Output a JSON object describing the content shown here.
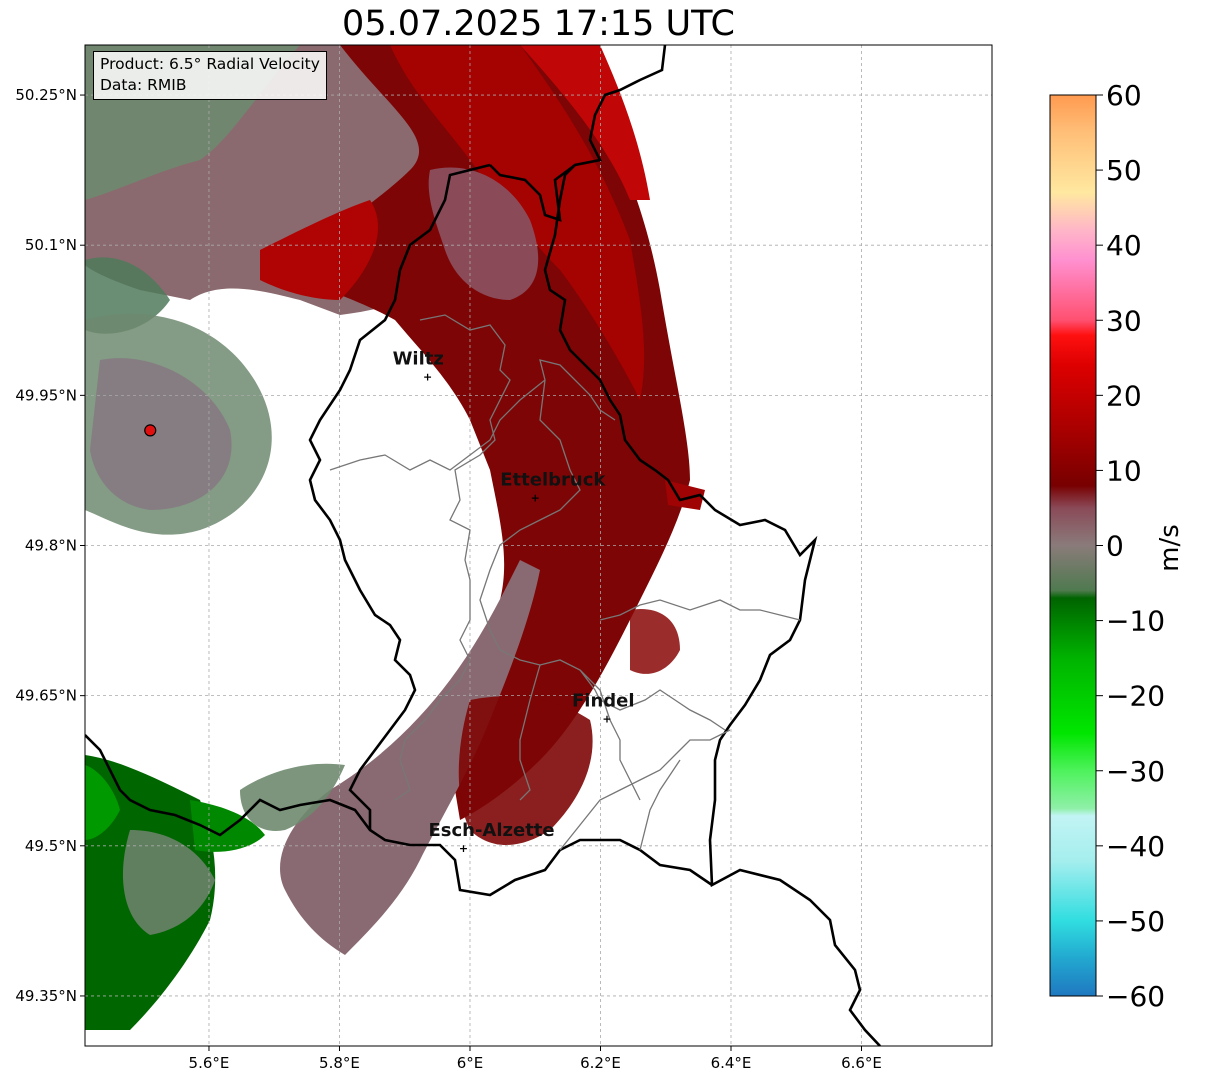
{
  "title": "05.07.2025 17:15 UTC",
  "info": {
    "product": "Product: 6.5° Radial Velocity",
    "data_source": "Data: RMIB"
  },
  "map": {
    "lon_range": [
      5.41,
      6.8
    ],
    "lat_range": [
      49.3,
      50.3
    ],
    "lat_ticks": [
      {
        "value": 50.25,
        "label": "50.25°N"
      },
      {
        "value": 50.1,
        "label": "50.1°N"
      },
      {
        "value": 49.95,
        "label": "49.95°N"
      },
      {
        "value": 49.8,
        "label": "49.8°N"
      },
      {
        "value": 49.65,
        "label": "49.65°N"
      },
      {
        "value": 49.5,
        "label": "49.5°N"
      },
      {
        "value": 49.35,
        "label": "49.35°N"
      }
    ],
    "lon_ticks": [
      {
        "value": 5.6,
        "label": "5.6°E"
      },
      {
        "value": 5.8,
        "label": "5.8°E"
      },
      {
        "value": 6.0,
        "label": "6°E"
      },
      {
        "value": 6.2,
        "label": "6.2°E"
      },
      {
        "value": 6.4,
        "label": "6.4°E"
      },
      {
        "value": 6.6,
        "label": "6.6°E"
      }
    ],
    "gridlines": true,
    "radar_site": {
      "lon": 5.51,
      "lat": 49.915,
      "color": "#e01010"
    },
    "cities": [
      {
        "name": "Wiltz",
        "lon": 5.935,
        "lat": 49.969
      },
      {
        "name": "Ettelbruck",
        "lon": 6.1,
        "lat": 49.848
      },
      {
        "name": "Findel",
        "lon": 6.21,
        "lat": 49.627
      },
      {
        "name": "Esch-Alzette",
        "lon": 5.99,
        "lat": 49.498
      }
    ]
  },
  "colorbar": {
    "label": "m/s",
    "min": -60,
    "max": 60,
    "ticks": [
      {
        "value": 60,
        "label": "60"
      },
      {
        "value": 50,
        "label": "50"
      },
      {
        "value": 40,
        "label": "40"
      },
      {
        "value": 30,
        "label": "30"
      },
      {
        "value": 20,
        "label": "20"
      },
      {
        "value": 10,
        "label": "10"
      },
      {
        "value": 0,
        "label": "0"
      },
      {
        "value": -10,
        "label": "−10"
      },
      {
        "value": -20,
        "label": "−20"
      },
      {
        "value": -30,
        "label": "−30"
      },
      {
        "value": -40,
        "label": "−40"
      },
      {
        "value": -50,
        "label": "−50"
      },
      {
        "value": -60,
        "label": "−60"
      }
    ],
    "color_stops": [
      {
        "value": -60,
        "color": "#1f78c0"
      },
      {
        "value": -55,
        "color": "#22a8d0"
      },
      {
        "value": -50,
        "color": "#30dde0"
      },
      {
        "value": -42,
        "color": "#a5eeee"
      },
      {
        "value": -36,
        "color": "#c2f4f4"
      },
      {
        "value": -35,
        "color": "#8ff0a8"
      },
      {
        "value": -30,
        "color": "#4ef25c"
      },
      {
        "value": -25,
        "color": "#00e600"
      },
      {
        "value": -15,
        "color": "#00b300"
      },
      {
        "value": -7,
        "color": "#006400"
      },
      {
        "value": -6,
        "color": "#4f7a4f"
      },
      {
        "value": 0,
        "color": "#8a7b7a"
      },
      {
        "value": 5,
        "color": "#8a4a58"
      },
      {
        "value": 8,
        "color": "#780000"
      },
      {
        "value": 15,
        "color": "#a60000"
      },
      {
        "value": 24,
        "color": "#dd0000"
      },
      {
        "value": 28,
        "color": "#ff1010"
      },
      {
        "value": 30,
        "color": "#ff5070"
      },
      {
        "value": 38,
        "color": "#ff90d0"
      },
      {
        "value": 42,
        "color": "#ffb6c8"
      },
      {
        "value": 47,
        "color": "#ffe8a0"
      },
      {
        "value": 55,
        "color": "#ffbf78"
      },
      {
        "value": 60,
        "color": "#ff9a50"
      }
    ]
  }
}
